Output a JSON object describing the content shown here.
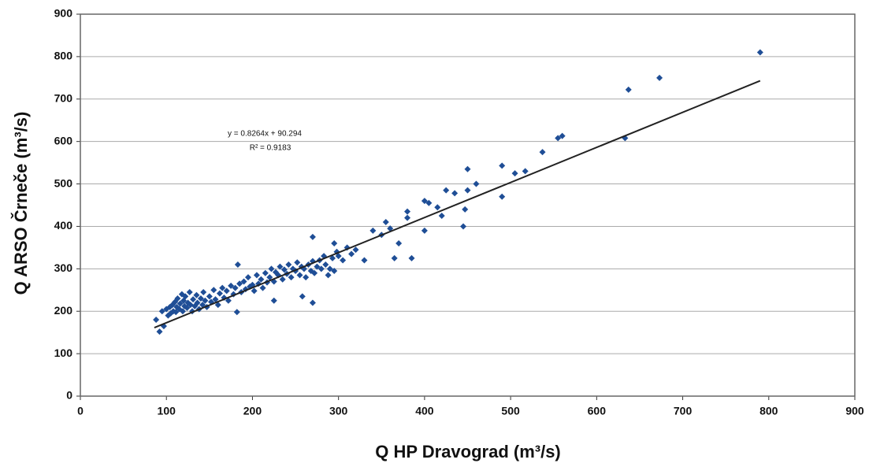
{
  "chart_data": {
    "type": "scatter",
    "x_label": "Q   HP Dravograd   (m³/s)",
    "y_label": "Q  ARSO Črneče  (m³/s)",
    "annotations": [
      "y = 0.8264x + 90.294",
      "R² = 0.9183"
    ],
    "xlim": [
      0,
      900
    ],
    "xticks": [
      0,
      100,
      200,
      300,
      400,
      500,
      600,
      700,
      800,
      900
    ],
    "ylim": [
      0,
      900
    ],
    "yticks": [
      0,
      100,
      200,
      300,
      400,
      500,
      600,
      700,
      800,
      900
    ],
    "grid": true,
    "series": [
      {
        "color": "#1f4e96",
        "x": [
          88,
          92,
          95,
          97,
          100,
          102,
          104,
          105,
          107,
          108,
          110,
          111,
          112,
          113,
          115,
          116,
          118,
          119,
          120,
          121,
          122,
          124,
          125,
          127,
          128,
          130,
          131,
          133,
          135,
          136,
          138,
          140,
          142,
          143,
          145,
          147,
          150,
          152,
          155,
          157,
          160,
          162,
          165,
          167,
          170,
          172,
          175,
          178,
          180,
          182,
          185,
          187,
          190,
          192,
          195,
          197,
          200,
          202,
          205,
          207,
          210,
          212,
          215,
          217,
          220,
          222,
          225,
          227,
          230,
          232,
          235,
          237,
          240,
          242,
          245,
          247,
          250,
          252,
          255,
          257,
          260,
          262,
          265,
          268,
          270,
          272,
          275,
          278,
          280,
          283,
          285,
          288,
          290,
          293,
          295,
          298,
          300,
          305,
          310,
          315,
          320,
          183,
          225,
          258,
          270,
          270,
          295,
          330,
          340,
          350,
          355,
          360,
          365,
          370,
          380,
          380,
          385,
          400,
          400,
          405,
          415,
          420,
          425,
          435,
          445,
          447,
          450,
          450,
          460,
          490,
          490,
          505,
          517,
          537,
          555,
          560,
          633,
          637,
          673,
          790
        ],
        "values": [
          180,
          152,
          200,
          165,
          205,
          190,
          210,
          195,
          215,
          200,
          222,
          198,
          210,
          230,
          205,
          218,
          240,
          200,
          225,
          212,
          235,
          208,
          220,
          245,
          215,
          200,
          228,
          212,
          238,
          220,
          205,
          230,
          215,
          245,
          225,
          210,
          235,
          222,
          250,
          228,
          215,
          242,
          255,
          232,
          248,
          225,
          260,
          240,
          255,
          198,
          265,
          245,
          270,
          252,
          280,
          258,
          262,
          248,
          285,
          265,
          275,
          255,
          290,
          268,
          280,
          300,
          270,
          292,
          285,
          305,
          275,
          298,
          288,
          310,
          280,
          300,
          295,
          315,
          285,
          305,
          300,
          280,
          310,
          295,
          318,
          290,
          305,
          320,
          300,
          330,
          310,
          285,
          300,
          325,
          295,
          340,
          330,
          320,
          350,
          335,
          345,
          310,
          225,
          235,
          375,
          220,
          360,
          320,
          390,
          380,
          410,
          395,
          325,
          360,
          420,
          435,
          325,
          390,
          460,
          455,
          445,
          425,
          485,
          478,
          400,
          440,
          485,
          535,
          500,
          470,
          543,
          525,
          530,
          575,
          608,
          613,
          608,
          722,
          750,
          810
        ]
      }
    ],
    "trendline": {
      "color": "#222222",
      "x": [
        86,
        790
      ],
      "values": [
        161.4,
        743.1
      ]
    }
  }
}
